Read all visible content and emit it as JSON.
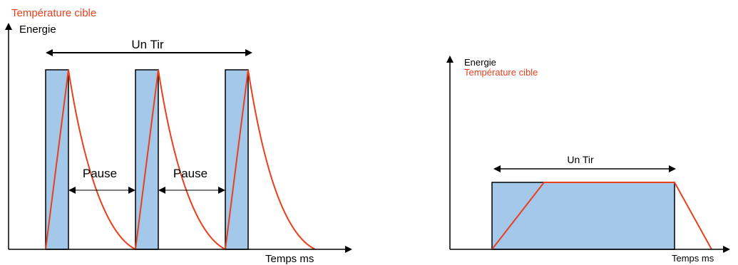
{
  "left_diagram": {
    "label_target_temp": "Température cible",
    "label_energy": "Energie",
    "label_shot": "Un Tir",
    "label_pause_1": "Pause",
    "label_pause_2": "Pause",
    "label_time": "Temps ms"
  },
  "right_diagram": {
    "label_energy": "Energie",
    "label_target_temp": "Température cible",
    "label_shot": "Un Tir",
    "label_time": "Temps ms"
  },
  "colors": {
    "pulse_fill": "#a4c8ea",
    "temperature_curve": "#e8401c",
    "axis": "#000000"
  }
}
